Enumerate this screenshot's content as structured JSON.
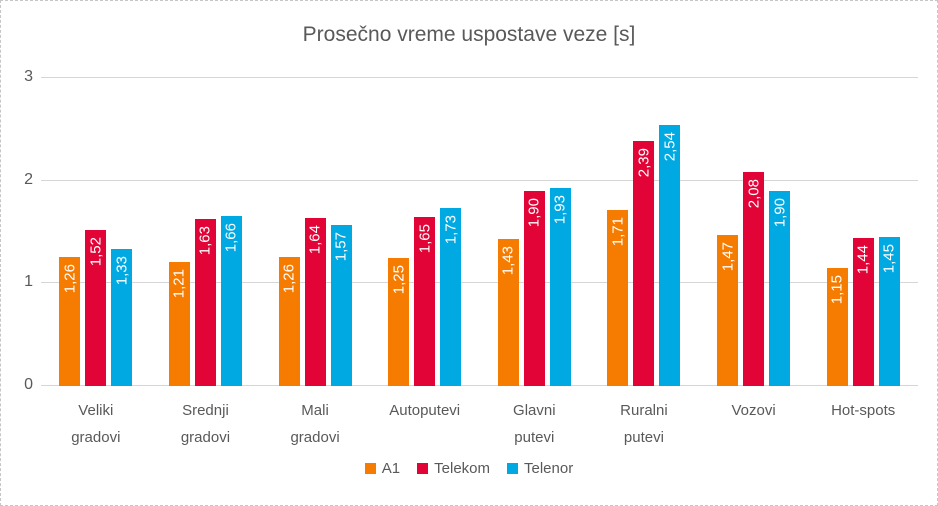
{
  "chart_data": {
    "type": "bar",
    "title": "Prosečno vreme uspostave veze [s]",
    "categories": [
      "Veliki gradovi",
      "Srednji gradovi",
      "Mali gradovi",
      "Autoputevi",
      "Glavni putevi",
      "Ruralni putevi",
      "Vozovi",
      "Hot-spots"
    ],
    "category_labels": [
      "Veliki\ngradovi",
      "Srednji\ngradovi",
      "Mali\ngradovi",
      "Autoputevi",
      "Glavni\nputevi",
      "Ruralni\nputevi",
      "Vozovi",
      "Hot-spots"
    ],
    "series": [
      {
        "name": "A1",
        "color": "#F57C00",
        "values": [
          1.26,
          1.21,
          1.26,
          1.25,
          1.43,
          1.71,
          1.47,
          1.15
        ],
        "labels": [
          "1,26",
          "1,21",
          "1,26",
          "1,25",
          "1,43",
          "1,71",
          "1,47",
          "1,15"
        ]
      },
      {
        "name": "Telekom",
        "color": "#E20337",
        "values": [
          1.52,
          1.63,
          1.64,
          1.65,
          1.9,
          2.39,
          2.08,
          1.44
        ],
        "labels": [
          "1,52",
          "1,63",
          "1,64",
          "1,65",
          "1,90",
          "2,39",
          "2,08",
          "1,44"
        ]
      },
      {
        "name": "Telenor",
        "color": "#00A9E2",
        "values": [
          1.33,
          1.66,
          1.57,
          1.73,
          1.93,
          2.54,
          1.9,
          1.45
        ],
        "labels": [
          "1,33",
          "1,66",
          "1,57",
          "1,73",
          "1,93",
          "2,54",
          "1,90",
          "1,45"
        ]
      }
    ],
    "xlabel": "",
    "ylabel": "",
    "ylim": [
      0,
      3
    ],
    "y_ticks": [
      0,
      1,
      2,
      3
    ],
    "y_tick_labels": [
      "0",
      "1",
      "2",
      "3"
    ],
    "grid": true,
    "legend_position": "bottom",
    "value_label_color": "#ffffff",
    "axis_text_color": "#595959",
    "gridline_color": "#d6d6d6"
  }
}
